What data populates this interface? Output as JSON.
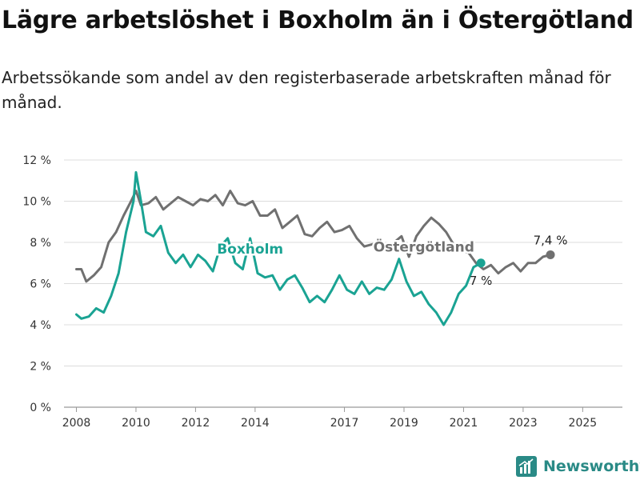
{
  "title": "Lägre arbetslöshet i Boxholm än i Östergötland",
  "subtitle": "Arbetssökande som andel av den registerbaserade arbetskraften månad för månad.",
  "brand": {
    "name": "Newsworthy",
    "icon": "newsworthy-logo-icon",
    "color": "#2a8a86"
  },
  "chart_data": {
    "type": "line",
    "x_ticks": [
      "2008",
      "2010",
      "2012",
      "2014",
      "2017",
      "2019",
      "2021",
      "2023",
      "2025"
    ],
    "y_ticks": [
      "0 %",
      "2 %",
      "4 %",
      "6 %",
      "8 %",
      "10 %",
      "12 %"
    ],
    "ylim": [
      0,
      12
    ],
    "xlim": [
      "2007-08",
      "2026-05"
    ],
    "grid": true,
    "series": [
      {
        "name": "Östergötland",
        "color": "#707070",
        "points": [
          [
            "2008-01",
            6.7
          ],
          [
            "2008-03",
            6.7
          ],
          [
            "2008-05",
            6.1
          ],
          [
            "2008-08",
            6.4
          ],
          [
            "2008-11",
            6.8
          ],
          [
            "2009-02",
            8.0
          ],
          [
            "2009-05",
            8.5
          ],
          [
            "2009-08",
            9.3
          ],
          [
            "2009-11",
            10.0
          ],
          [
            "2010-01",
            10.5
          ],
          [
            "2010-03",
            9.8
          ],
          [
            "2010-06",
            9.9
          ],
          [
            "2010-09",
            10.2
          ],
          [
            "2010-12",
            9.6
          ],
          [
            "2011-03",
            9.9
          ],
          [
            "2011-06",
            10.2
          ],
          [
            "2011-09",
            10.0
          ],
          [
            "2011-12",
            9.8
          ],
          [
            "2012-03",
            10.1
          ],
          [
            "2012-06",
            10.0
          ],
          [
            "2012-09",
            10.3
          ],
          [
            "2012-12",
            9.8
          ],
          [
            "2013-03",
            10.5
          ],
          [
            "2013-06",
            9.9
          ],
          [
            "2013-09",
            9.8
          ],
          [
            "2013-12",
            10.0
          ],
          [
            "2014-03",
            9.3
          ],
          [
            "2014-06",
            9.3
          ],
          [
            "2014-09",
            9.6
          ],
          [
            "2014-12",
            8.7
          ],
          [
            "2015-03",
            9.0
          ],
          [
            "2015-06",
            9.3
          ],
          [
            "2015-09",
            8.4
          ],
          [
            "2015-12",
            8.3
          ],
          [
            "2016-03",
            8.7
          ],
          [
            "2016-06",
            9.0
          ],
          [
            "2016-09",
            8.5
          ],
          [
            "2016-12",
            8.6
          ],
          [
            "2017-03",
            8.8
          ],
          [
            "2017-06",
            8.2
          ],
          [
            "2017-09",
            7.8
          ],
          [
            "2017-12",
            7.9
          ],
          [
            "2018-03",
            8.0
          ],
          [
            "2018-06",
            7.6
          ],
          [
            "2018-09",
            8.0
          ],
          [
            "2018-12",
            8.3
          ],
          [
            "2019-03",
            7.3
          ],
          [
            "2019-06",
            8.3
          ],
          [
            "2019-09",
            8.8
          ],
          [
            "2019-12",
            9.2
          ],
          [
            "2020-03",
            8.9
          ],
          [
            "2020-06",
            8.5
          ],
          [
            "2020-09",
            7.9
          ],
          [
            "2020-12",
            7.6
          ],
          [
            "2021-03",
            7.5
          ],
          [
            "2021-06",
            7.0
          ],
          [
            "2021-09",
            6.7
          ],
          [
            "2021-12",
            6.9
          ],
          [
            "2022-03",
            6.5
          ],
          [
            "2022-06",
            6.8
          ],
          [
            "2022-09",
            7.0
          ],
          [
            "2022-12",
            6.6
          ],
          [
            "2023-03",
            7.0
          ],
          [
            "2023-06",
            7.0
          ],
          [
            "2023-09",
            7.3
          ],
          [
            "2023-12",
            7.4
          ]
        ],
        "end_label": "7,4 %"
      },
      {
        "name": "Boxholm",
        "color": "#1aa393",
        "points": [
          [
            "2008-01",
            4.5
          ],
          [
            "2008-03",
            4.3
          ],
          [
            "2008-06",
            4.4
          ],
          [
            "2008-09",
            4.8
          ],
          [
            "2008-12",
            4.6
          ],
          [
            "2009-03",
            5.4
          ],
          [
            "2009-06",
            6.5
          ],
          [
            "2009-09",
            8.5
          ],
          [
            "2009-12",
            10.0
          ],
          [
            "2010-01",
            11.4
          ],
          [
            "2010-03",
            10.0
          ],
          [
            "2010-05",
            8.5
          ],
          [
            "2010-08",
            8.3
          ],
          [
            "2010-11",
            8.8
          ],
          [
            "2011-02",
            7.5
          ],
          [
            "2011-05",
            7.0
          ],
          [
            "2011-08",
            7.4
          ],
          [
            "2011-11",
            6.8
          ],
          [
            "2012-02",
            7.4
          ],
          [
            "2012-05",
            7.1
          ],
          [
            "2012-08",
            6.6
          ],
          [
            "2012-11",
            7.8
          ],
          [
            "2013-02",
            8.2
          ],
          [
            "2013-05",
            7.0
          ],
          [
            "2013-08",
            6.7
          ],
          [
            "2013-11",
            8.2
          ],
          [
            "2014-02",
            6.5
          ],
          [
            "2014-05",
            6.3
          ],
          [
            "2014-08",
            6.4
          ],
          [
            "2014-11",
            5.7
          ],
          [
            "2015-02",
            6.2
          ],
          [
            "2015-05",
            6.4
          ],
          [
            "2015-08",
            5.8
          ],
          [
            "2015-11",
            5.1
          ],
          [
            "2016-02",
            5.4
          ],
          [
            "2016-05",
            5.1
          ],
          [
            "2016-08",
            5.7
          ],
          [
            "2016-11",
            6.4
          ],
          [
            "2017-02",
            5.7
          ],
          [
            "2017-05",
            5.5
          ],
          [
            "2017-08",
            6.1
          ],
          [
            "2017-11",
            5.5
          ],
          [
            "2018-02",
            5.8
          ],
          [
            "2018-05",
            5.7
          ],
          [
            "2018-08",
            6.2
          ],
          [
            "2018-11",
            7.2
          ],
          [
            "2019-02",
            6.1
          ],
          [
            "2019-05",
            5.4
          ],
          [
            "2019-08",
            5.6
          ],
          [
            "2019-11",
            5.0
          ],
          [
            "2020-02",
            4.6
          ],
          [
            "2020-05",
            4.0
          ],
          [
            "2020-08",
            4.6
          ],
          [
            "2020-11",
            5.5
          ],
          [
            "2021-02",
            5.9
          ],
          [
            "2021-05",
            6.8
          ],
          [
            "2021-08",
            7.0
          ]
        ],
        "end_label": "7 %"
      }
    ]
  }
}
